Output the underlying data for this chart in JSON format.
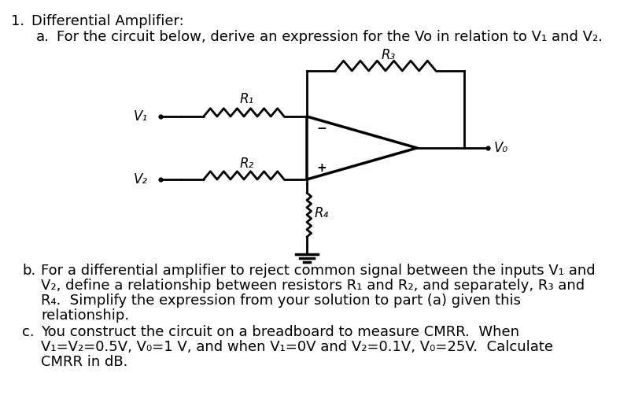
{
  "background_color": "#ffffff",
  "title_number": "1.",
  "title_text": "Differential Amplifier:",
  "item_a_label": "a.",
  "item_a_text": "For the circuit below, derive an expression for the Vo in relation to V₁ and V₂.",
  "item_b_label": "b.",
  "item_b_line1": "For a differential amplifier to reject common signal between the inputs V₁ and",
  "item_b_line2": "V₂, define a relationship between resistors R₁ and R₂, and separately, R₃ and",
  "item_b_line3": "R₄.  Simplify the expression from your solution to part (a) given this",
  "item_b_line4": "relationship.",
  "item_c_label": "c.",
  "item_c_line1": "You construct the circuit on a breadboard to measure CMRR.  When",
  "item_c_line2": "V₁=V₂=0.5V, V₀=1 V, and when V₁=0V and V₂=0.1V, V₀=25V.  Calculate",
  "item_c_line3": "CMRR in dB.",
  "font_size_main": 13,
  "text_color": "#000000",
  "circuit": {
    "v1_label": "V₁",
    "v2_label": "V₂",
    "r1_label": "R₁",
    "r2_label": "R₂",
    "r3_label": "R₃",
    "r4_label": "R₄",
    "vo_label": "V₀"
  },
  "lw": 2.0
}
